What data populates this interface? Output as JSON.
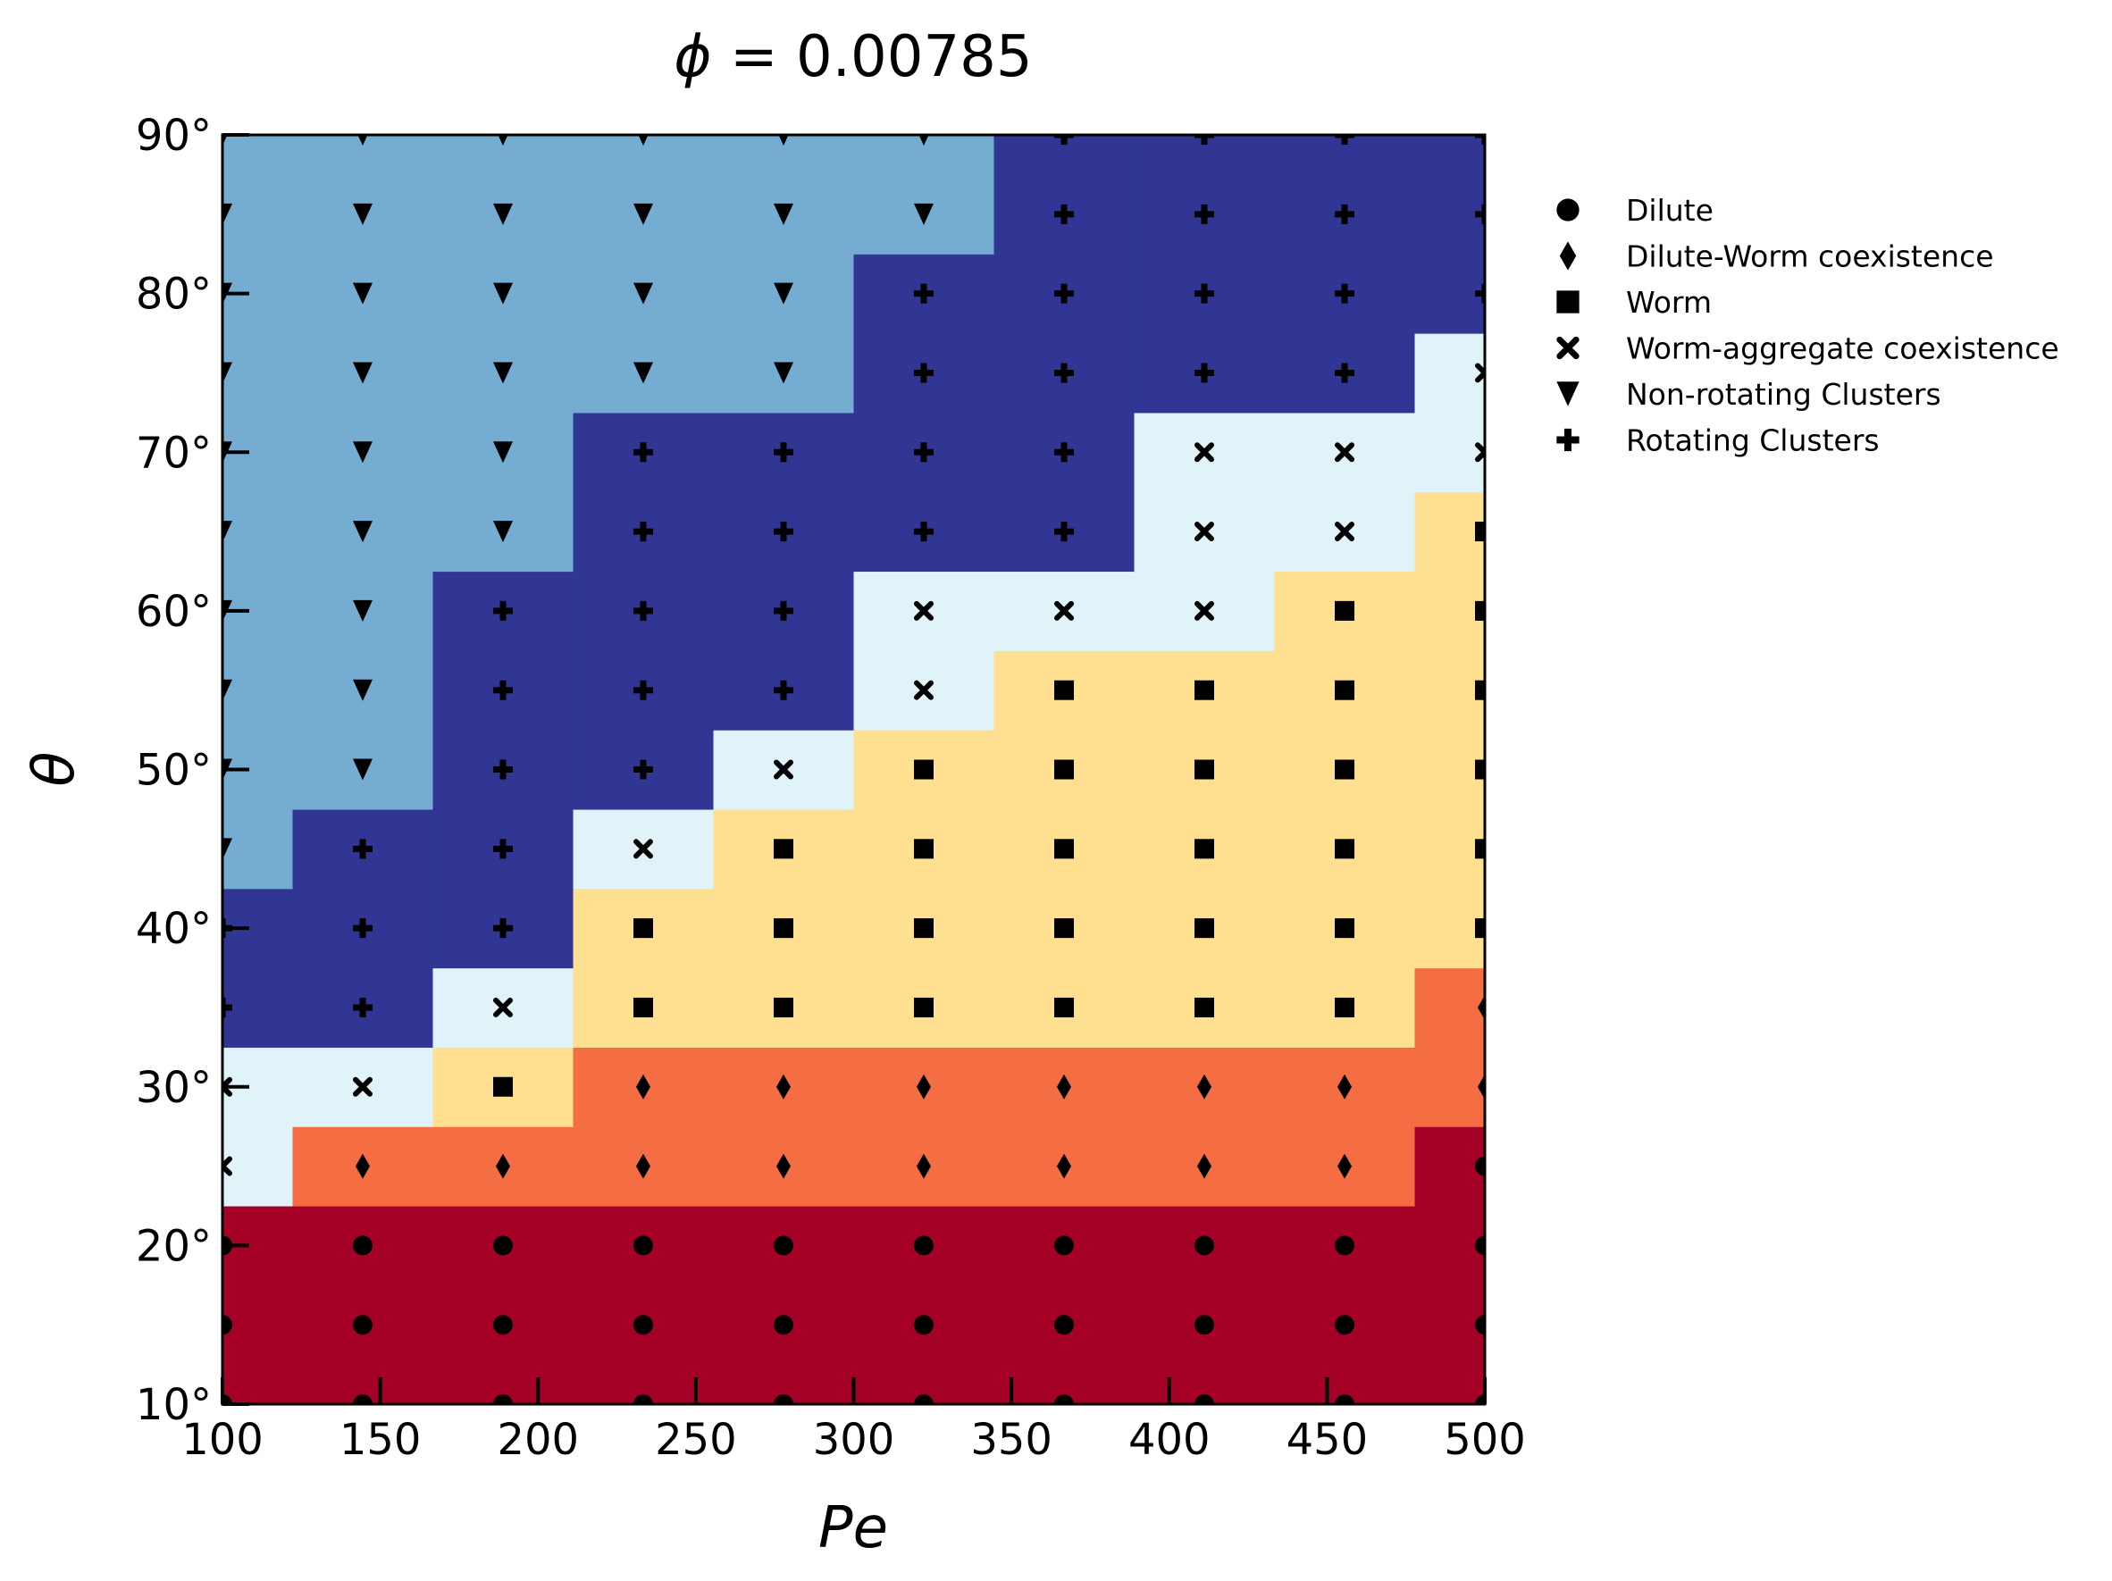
{
  "chart_data": {
    "type": "heatmap",
    "title_prefix": "ϕ",
    "title_value": " = 0.00785",
    "xlabel": "Pe",
    "ylabel": "θ",
    "xlim": [
      100,
      500
    ],
    "ylim": [
      10,
      90
    ],
    "xticks": [
      100,
      150,
      200,
      250,
      300,
      350,
      400,
      450,
      500
    ],
    "xtick_labels": [
      "100",
      "150",
      "200",
      "250",
      "300",
      "350",
      "400",
      "450",
      "500"
    ],
    "yticks": [
      10,
      20,
      30,
      40,
      50,
      60,
      70,
      80,
      90
    ],
    "ytick_labels": [
      "10°",
      "20°",
      "30°",
      "40°",
      "50°",
      "60°",
      "70°",
      "80°",
      "90°"
    ],
    "x": [
      100,
      144.44,
      188.89,
      233.33,
      277.78,
      322.22,
      366.67,
      411.11,
      455.56,
      500
    ],
    "y": [
      10,
      15,
      20,
      25,
      30,
      35,
      40,
      45,
      50,
      55,
      60,
      65,
      70,
      75,
      80,
      85,
      90
    ],
    "phase_colors": {
      "Dilute": "#a50026",
      "Dilute-Worm coexistence": "#f46d43",
      "Worm": "#fee090",
      "Worm-aggregate coexistence": "#e0f3f8",
      "Non-rotating Clusters": "#74add1",
      "Rotating Clusters": "#313695"
    },
    "legend": [
      {
        "label": "Dilute",
        "marker": "circle"
      },
      {
        "label": "Dilute-Worm coexistence",
        "marker": "diamond"
      },
      {
        "label": "Worm",
        "marker": "square"
      },
      {
        "label": "Worm-aggregate coexistence",
        "marker": "x"
      },
      {
        "label": "Non-rotating Clusters",
        "marker": "triangle-down"
      },
      {
        "label": "Rotating Clusters",
        "marker": "plus"
      }
    ],
    "legend_position": "outside-right",
    "phase_codes": {
      "D": "Dilute",
      "C": "Dilute-Worm coexistence",
      "W": "Worm",
      "A": "Worm-aggregate coexistence",
      "N": "Non-rotating Clusters",
      "R": "Rotating Clusters"
    },
    "grid": [
      [
        "D",
        "D",
        "D",
        "D",
        "D",
        "D",
        "D",
        "D",
        "D",
        "D"
      ],
      [
        "D",
        "D",
        "D",
        "D",
        "D",
        "D",
        "D",
        "D",
        "D",
        "D"
      ],
      [
        "D",
        "D",
        "D",
        "D",
        "D",
        "D",
        "D",
        "D",
        "D",
        "D"
      ],
      [
        "A",
        "C",
        "C",
        "C",
        "C",
        "C",
        "C",
        "C",
        "C",
        "D"
      ],
      [
        "A",
        "A",
        "W",
        "C",
        "C",
        "C",
        "C",
        "C",
        "C",
        "C"
      ],
      [
        "R",
        "R",
        "A",
        "W",
        "W",
        "W",
        "W",
        "W",
        "W",
        "C"
      ],
      [
        "R",
        "R",
        "R",
        "W",
        "W",
        "W",
        "W",
        "W",
        "W",
        "W"
      ],
      [
        "N",
        "R",
        "R",
        "A",
        "W",
        "W",
        "W",
        "W",
        "W",
        "W"
      ],
      [
        "N",
        "N",
        "R",
        "R",
        "A",
        "W",
        "W",
        "W",
        "W",
        "W"
      ],
      [
        "N",
        "N",
        "R",
        "R",
        "R",
        "A",
        "W",
        "W",
        "W",
        "W"
      ],
      [
        "N",
        "N",
        "R",
        "R",
        "R",
        "A",
        "A",
        "A",
        "W",
        "W"
      ],
      [
        "N",
        "N",
        "N",
        "R",
        "R",
        "R",
        "R",
        "A",
        "A",
        "W"
      ],
      [
        "N",
        "N",
        "N",
        "R",
        "R",
        "R",
        "R",
        "A",
        "A",
        "A"
      ],
      [
        "N",
        "N",
        "N",
        "N",
        "N",
        "R",
        "R",
        "R",
        "R",
        "A"
      ],
      [
        "N",
        "N",
        "N",
        "N",
        "N",
        "R",
        "R",
        "R",
        "R",
        "R"
      ],
      [
        "N",
        "N",
        "N",
        "N",
        "N",
        "N",
        "R",
        "R",
        "R",
        "R"
      ],
      [
        "N",
        "N",
        "N",
        "N",
        "N",
        "N",
        "R",
        "R",
        "R",
        "R"
      ]
    ]
  }
}
